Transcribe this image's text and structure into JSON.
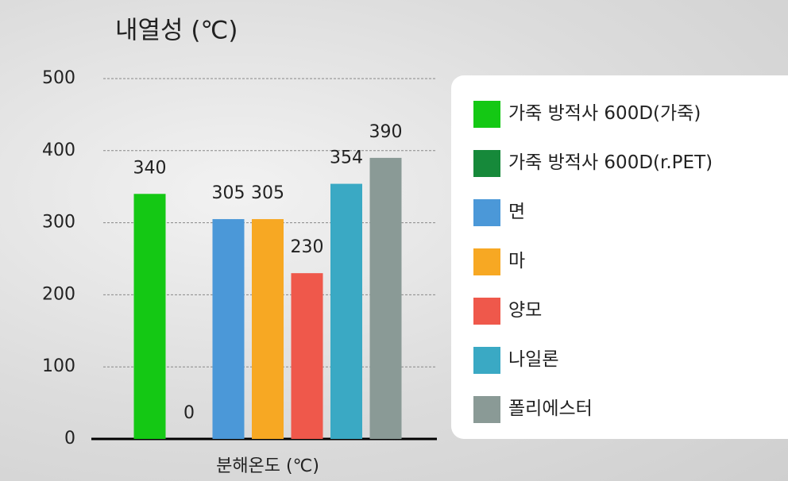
{
  "chart_data": {
    "type": "bar",
    "title": "내열성 (℃)",
    "categories": [
      "분해온도 (℃)"
    ],
    "series": [
      {
        "name": "가죽 방적사 600D(가죽)",
        "color": "#14c814",
        "values": [
          340
        ]
      },
      {
        "name": "가죽 방적사 600D(r.PET)",
        "color": "#16893a",
        "values": [
          0
        ]
      },
      {
        "name": "면",
        "color": "#4b98d8",
        "values": [
          305
        ]
      },
      {
        "name": "마",
        "color": "#f7a823",
        "values": [
          305
        ]
      },
      {
        "name": "양모",
        "color": "#ef584b",
        "values": [
          230
        ]
      },
      {
        "name": "나일론",
        "color": "#3aa9c4",
        "values": [
          354
        ]
      },
      {
        "name": "폴리에스터",
        "color": "#8a9a96",
        "values": [
          390
        ]
      }
    ],
    "ylim": [
      0,
      500
    ],
    "yticks": [
      0,
      100,
      200,
      300,
      400,
      500
    ],
    "grid": true,
    "legend": "right"
  }
}
